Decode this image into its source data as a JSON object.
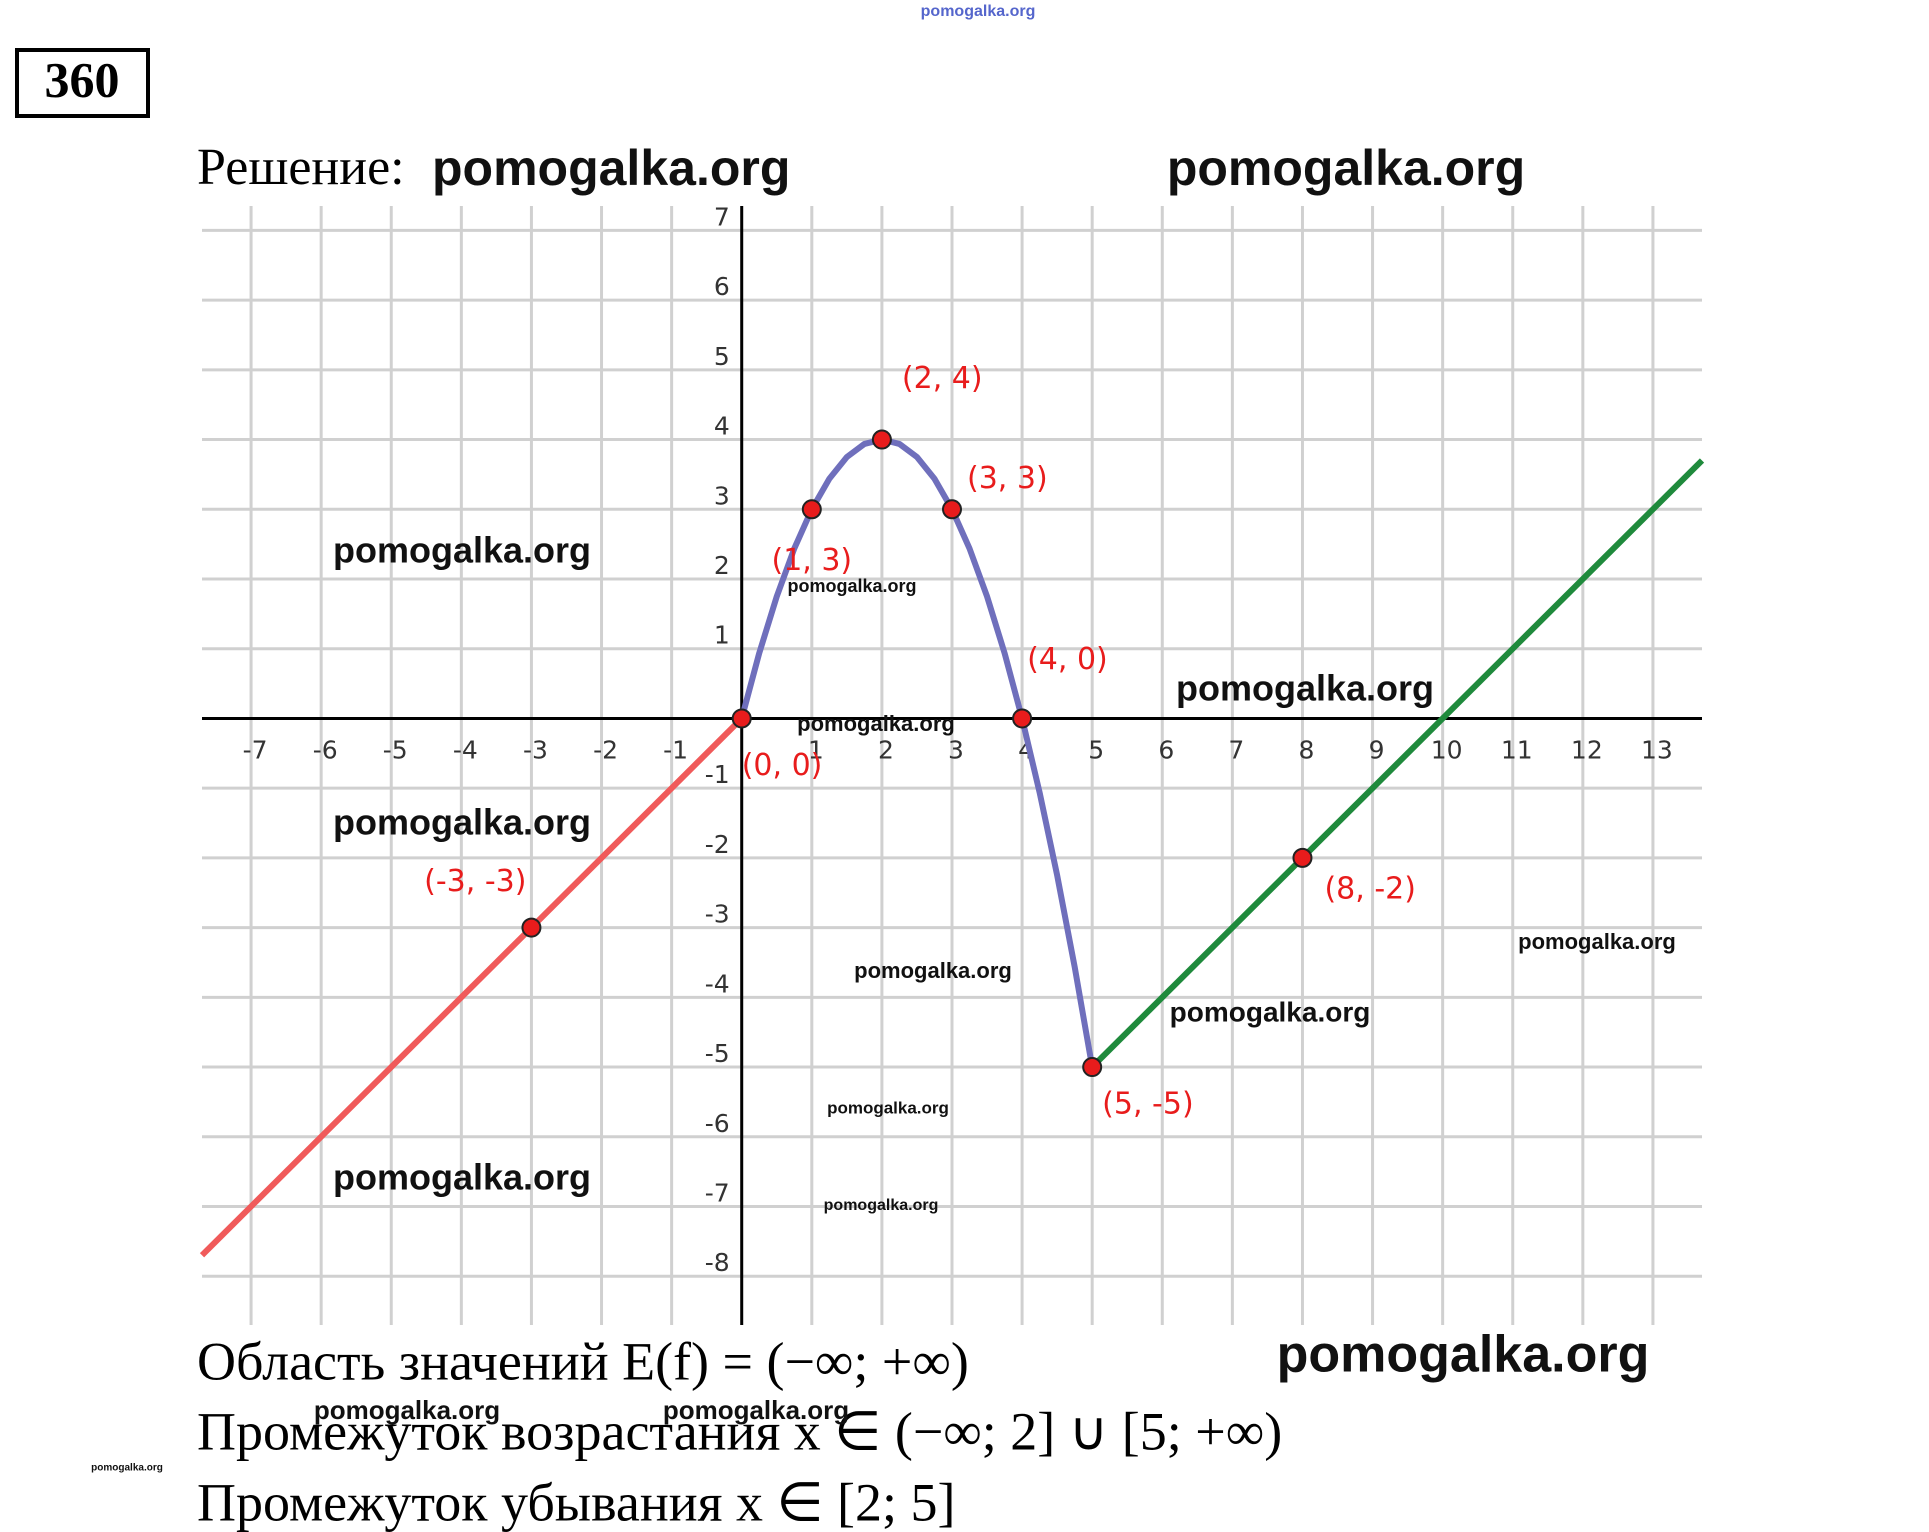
{
  "problem_number": "360",
  "solution_label": "Решение:",
  "chart_data": {
    "type": "line",
    "xlim": [
      -7.7,
      13.7
    ],
    "ylim": [
      -8.7,
      7.35
    ],
    "xticks": [
      -7,
      -6,
      -5,
      -4,
      -3,
      -2,
      -1,
      1,
      2,
      3,
      4,
      5,
      6,
      7,
      8,
      9,
      10,
      11,
      12,
      13
    ],
    "yticks": [
      -8,
      -7,
      -6,
      -5,
      -4,
      -3,
      -2,
      -1,
      1,
      2,
      3,
      4,
      5,
      6,
      7
    ],
    "grid": true,
    "series": [
      {
        "color": "#f05a5a",
        "x": [
          -7.7,
          -3,
          0
        ],
        "values": [
          -7.7,
          -3,
          0
        ]
      },
      {
        "color": "#6f6fbc",
        "x": [
          0,
          0.25,
          0.5,
          0.75,
          1,
          1.25,
          1.5,
          1.75,
          2,
          2.25,
          2.5,
          2.75,
          3,
          3.25,
          3.5,
          3.75,
          4,
          4.25,
          4.5,
          4.75,
          5
        ],
        "values": [
          0,
          0.9375,
          1.75,
          2.4375,
          3,
          3.4375,
          3.75,
          3.9375,
          4,
          3.9375,
          3.75,
          3.4375,
          3,
          2.4375,
          1.75,
          0.9375,
          0,
          -1.0625,
          -2.25,
          -3.5625,
          -5
        ]
      },
      {
        "color": "#1f8a3c",
        "x": [
          5,
          8,
          13.7
        ],
        "values": [
          -5,
          -2,
          3.7
        ]
      }
    ],
    "points": [
      {
        "label": "(2, 4)",
        "x": 2,
        "y": 4
      },
      {
        "label": "(3, 3)",
        "x": 3,
        "y": 3
      },
      {
        "label": "(1, 3)",
        "x": 1,
        "y": 3
      },
      {
        "label": "(4, 0)",
        "x": 4,
        "y": 0
      },
      {
        "label": "(0, 0)",
        "x": 0,
        "y": 0
      },
      {
        "label": "(-3, -3)",
        "x": -3,
        "y": -3
      },
      {
        "label": "(8, -2)",
        "x": 8,
        "y": -2
      },
      {
        "label": "(5, -5)",
        "x": 5,
        "y": -5
      }
    ],
    "point_color": "#e81c1c"
  },
  "conclusions": [
    "Область значений E(f) = (−∞; +∞)",
    "Промежуток возрастания x ∈ (−∞; 2] ∪ [5; +∞)",
    "Промежуток убывания x ∈ [2; 5]"
  ],
  "watermarks": [
    "pomogalka.org",
    "pomogalka.org",
    "pomogalka.org",
    "pomogalka.org",
    "pomogalka.org",
    "pomogalka.org",
    "pomogalka.org",
    "pomogalka.org",
    "pomogalka.org",
    "pomogalka.org",
    "pomogalka.org",
    "pomogalka.org",
    "pomogalka.org",
    "pomogalka.org",
    "pomogalka.org",
    "pomogalka.org",
    "pomogalka.org",
    "pomogalka.org"
  ]
}
